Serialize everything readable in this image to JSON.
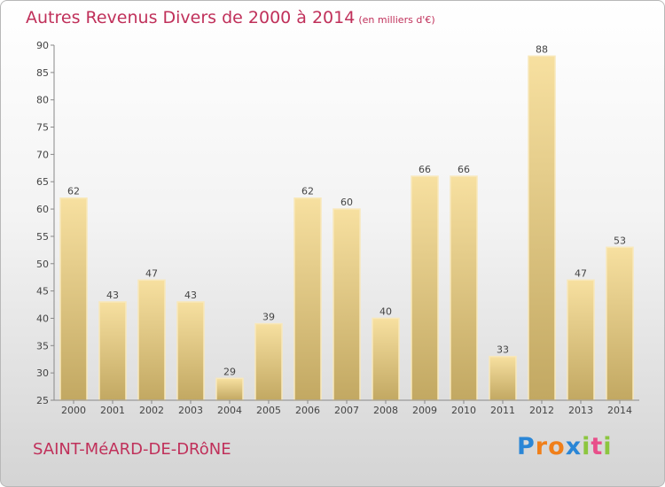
{
  "title": "Autres Revenus Divers de 2000 à 2014",
  "subtitle": "(en milliers d'€)",
  "location": "SAINT-MéARD-DE-DRôNE",
  "logo": {
    "text": "Proxiti",
    "letters": [
      {
        "char": "P",
        "color": "#2a86d6"
      },
      {
        "char": "r",
        "color": "#f07f1a"
      },
      {
        "char": "o",
        "color": "#f07f1a"
      },
      {
        "char": "x",
        "color": "#2a86d6"
      },
      {
        "char": "i",
        "color": "#8cc63f"
      },
      {
        "char": "t",
        "color": "#e84f8a"
      },
      {
        "char": "i",
        "color": "#8cc63f"
      }
    ]
  },
  "colors": {
    "title": "#c0305a",
    "bar_top": "#f7e0a0",
    "bar_bottom": "#c2a862",
    "axis": "#888888",
    "gridline": "#aaaaaa"
  },
  "chart_data": {
    "type": "bar",
    "title": "Autres Revenus Divers de 2000 à 2014",
    "xlabel": "",
    "ylabel": "",
    "categories": [
      "2000",
      "2001",
      "2002",
      "2003",
      "2004",
      "2005",
      "2006",
      "2007",
      "2008",
      "2009",
      "2010",
      "2011",
      "2012",
      "2013",
      "2014"
    ],
    "values": [
      62,
      43,
      47,
      43,
      29,
      39,
      62,
      60,
      40,
      66,
      66,
      33,
      88,
      47,
      53
    ],
    "ylim": [
      25,
      90
    ],
    "yticks": [
      25,
      30,
      35,
      40,
      45,
      50,
      55,
      60,
      65,
      70,
      75,
      80,
      85,
      90
    ],
    "grid": false,
    "legend": "none",
    "data_labels": true
  }
}
